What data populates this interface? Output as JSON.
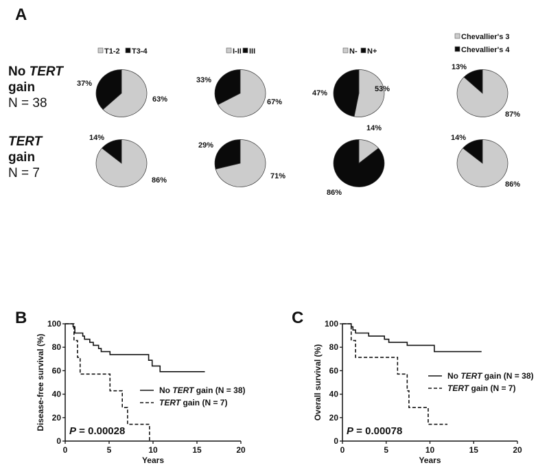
{
  "panels": {
    "a": "A",
    "b": "B",
    "c": "C"
  },
  "colors": {
    "gray": "#cccccc",
    "black": "#0a0a0a"
  },
  "row_labels": [
    {
      "line1_pre": "No ",
      "line1_it": "TERT",
      "line2": "gain",
      "line3": "N = 38"
    },
    {
      "line1_pre": "",
      "line1_it": "TERT",
      "line2": "gain",
      "line3": "N = 7"
    }
  ],
  "chart_data": [
    {
      "type": "pie",
      "legend": [
        "T1-2",
        "T3-4"
      ],
      "rows": [
        {
          "values": [
            63,
            37
          ],
          "labels": [
            "63%",
            "37%"
          ]
        },
        {
          "values": [
            86,
            14
          ],
          "labels": [
            "86%",
            "14%"
          ]
        }
      ]
    },
    {
      "type": "pie",
      "legend": [
        "I-II",
        "III"
      ],
      "rows": [
        {
          "values": [
            67,
            33
          ],
          "labels": [
            "67%",
            "33%"
          ]
        },
        {
          "values": [
            71,
            29
          ],
          "labels": [
            "71%",
            "29%"
          ]
        }
      ]
    },
    {
      "type": "pie",
      "legend": [
        "N-",
        "N+"
      ],
      "rows": [
        {
          "values": [
            53,
            47
          ],
          "labels": [
            "53%",
            "47%"
          ]
        },
        {
          "values": [
            14,
            86
          ],
          "labels": [
            "14%",
            "86%"
          ]
        }
      ]
    },
    {
      "type": "pie",
      "legend": [
        "Chevallier's 3",
        "Chevallier's 4"
      ],
      "rows": [
        {
          "values": [
            87,
            13
          ],
          "labels": [
            "87%",
            "13%"
          ]
        },
        {
          "values": [
            86,
            14
          ],
          "labels": [
            "86%",
            "14%"
          ]
        }
      ]
    },
    {
      "type": "line",
      "title": "",
      "xlabel": "Years",
      "ylabel": "Disease-free survival (%)",
      "xlim": [
        0,
        20
      ],
      "ylim": [
        0,
        100
      ],
      "xticks": [
        "0",
        "5",
        "10",
        "15",
        "20"
      ],
      "yticks": [
        "0",
        "20",
        "40",
        "60",
        "80",
        "100"
      ],
      "pvalue_label": "P",
      "pvalue": " = 0.00028",
      "series": [
        {
          "name_pre": "No ",
          "name_it": "TERT",
          "name_post": " gain (N = 38)",
          "style": "solid",
          "steps": [
            [
              0,
              100
            ],
            [
              0.9,
              97.4
            ],
            [
              1.1,
              92.1
            ],
            [
              2,
              89.5
            ],
            [
              2.2,
              86.8
            ],
            [
              2.8,
              84.2
            ],
            [
              3.2,
              81.6
            ],
            [
              3.8,
              78.9
            ],
            [
              4.1,
              76.3
            ],
            [
              5.1,
              73.7
            ],
            [
              9.5,
              68.9
            ],
            [
              9.9,
              64
            ],
            [
              10.8,
              59.2
            ]
          ],
          "end": 15.9
        },
        {
          "name_pre": "",
          "name_it": "TERT",
          "name_post": " gain  (N = 7)",
          "style": "dashed",
          "steps": [
            [
              0,
              100
            ],
            [
              1,
              85.7
            ],
            [
              1.4,
              71.4
            ],
            [
              1.7,
              57.1
            ],
            [
              5.1,
              42.9
            ],
            [
              6.5,
              28.6
            ],
            [
              7.1,
              14.3
            ],
            [
              9.6,
              0
            ]
          ],
          "end": 9.6
        }
      ]
    },
    {
      "type": "line",
      "title": "",
      "xlabel": "Years",
      "ylabel": "Overall survival (%)",
      "xlim": [
        0,
        20
      ],
      "ylim": [
        0,
        100
      ],
      "xticks": [
        "0",
        "5",
        "10",
        "15",
        "20"
      ],
      "yticks": [
        "0",
        "20",
        "40",
        "60",
        "80",
        "100"
      ],
      "pvalue_label": "P",
      "pvalue": " = 0.00078",
      "series": [
        {
          "name_pre": "No ",
          "name_it": "TERT",
          "name_post": " gain (N = 38)",
          "style": "solid",
          "steps": [
            [
              0,
              100
            ],
            [
              1,
              97.4
            ],
            [
              1.2,
              94.7
            ],
            [
              1.5,
              92.1
            ],
            [
              3,
              89.5
            ],
            [
              4.8,
              86.8
            ],
            [
              5.3,
              84.2
            ],
            [
              7.4,
              81.6
            ],
            [
              10.5,
              76.3
            ]
          ],
          "end": 15.9
        },
        {
          "name_pre": "",
          "name_it": "TERT",
          "name_post": " gain  (N = 7)",
          "style": "dashed",
          "steps": [
            [
              0,
              100
            ],
            [
              1,
              85.7
            ],
            [
              1.5,
              71.4
            ],
            [
              6.3,
              57.1
            ],
            [
              7.4,
              42.9
            ],
            [
              7.6,
              28.6
            ],
            [
              9.8,
              14.3
            ]
          ],
          "end": 12
        }
      ]
    }
  ]
}
